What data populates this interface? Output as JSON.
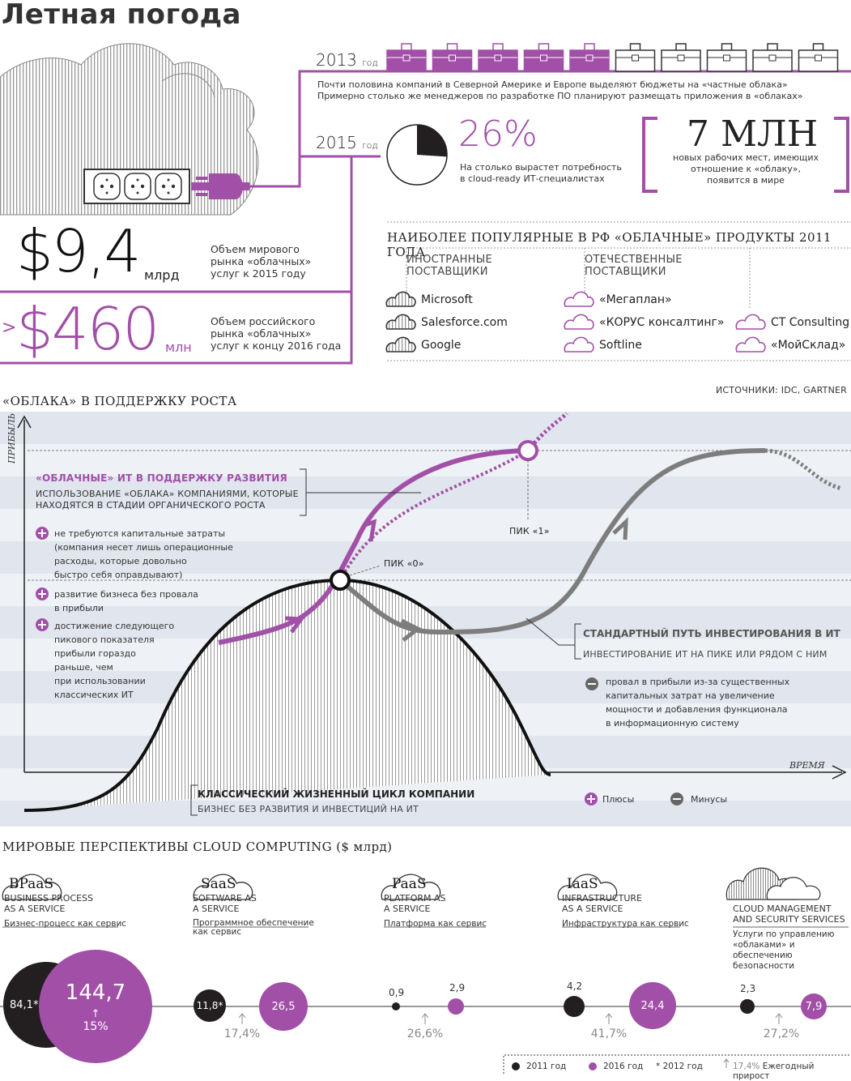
{
  "title": "Летная погода",
  "top": {
    "y2013": "2013",
    "y2015": "2015",
    "year_word": "год",
    "note_2013": [
      "Почти половина компаний в Северной Америке и Европе выделяют бюджеты на «частные облака»",
      "Примерно столько же менеджеров по разработке ПО планируют размещать приложения в «облаках»"
    ],
    "pie_percent": 26,
    "pct_label": "26%",
    "pct_desc": [
      "На столько вырастет потребность",
      "в cloud-ready ИТ-специалистах"
    ],
    "mln_big": "7 МЛН",
    "mln_desc": [
      "новых рабочих мест, имеющих",
      "отношение к «облаку»,",
      "появится в мире"
    ],
    "val1": "$9,4",
    "val1_unit": "млрд",
    "val1_desc": [
      "Объем мирового",
      "рынка «облачных»",
      "услуг к 2015 году"
    ],
    "val2_prefix": ">",
    "val2": "$460",
    "val2_unit": "млн",
    "val2_desc": [
      "Объем российского",
      "рынка «облачных»",
      "услуг к концу 2016 года"
    ],
    "briefcases_filled": 5,
    "briefcases_total": 10
  },
  "popular": {
    "title": "НАИБОЛЕЕ ПОПУЛЯРНЫЕ В РФ «ОБЛАЧНЫЕ» ПРОДУКТЫ 2011 ГОДА",
    "foreign_hdr": [
      "ИНОСТРАННЫЕ",
      "ПОСТАВЩИКИ"
    ],
    "domestic_hdr": [
      "ОТЕЧЕСТВЕННЫЕ",
      "ПОСТАВЩИКИ"
    ],
    "foreign": [
      "Microsoft",
      "Salesforce.com",
      "Google"
    ],
    "domestic_a": [
      "«Мегаплан»",
      "«КОРУС консалтинг»",
      "Softline"
    ],
    "domestic_b": [
      "CT Consulting",
      "«МойСклад»"
    ],
    "sources": "ИСТОЧНИКИ:  IDC, GARTNER"
  },
  "growth_chart": {
    "title": "«ОБЛАКА» В ПОДДЕРЖКУ РОСТА",
    "y_axis": "ПРИБЫЛЬ",
    "x_axis": "ВРЕМЯ",
    "cloud_title": "«ОБЛАЧНЫЕ» ИТ В ПОДДЕРЖКУ РАЗВИТИЯ",
    "cloud_sub": [
      "ИСПОЛЬЗОВАНИЕ «ОБЛАКА» КОМПАНИЯМИ, КОТОРЫЕ",
      "НАХОДЯТСЯ В СТАДИИ ОРГАНИЧЕСКОГО РОСТА"
    ],
    "plus1": [
      "не требуются капитальные затраты",
      "(компания несет лишь операционные",
      "расходы, которые довольно",
      "быстро себя оправдывают)"
    ],
    "plus2": [
      "развитие бизнеса без провала",
      "в прибыли"
    ],
    "plus3": [
      "достижение следующего",
      "пикового показателя",
      "прибыли гораздо",
      "раньше, чем",
      "при использовании",
      "классических ИТ"
    ],
    "peak1": "ПИК «1»",
    "peak0": "ПИК «0»",
    "std_title": "СТАНДАРТНЫЙ ПУТЬ ИНВЕСТИРОВАНИЯ В ИТ",
    "std_sub": "ИНВЕСТИРОВАНИЕ ИТ НА ПИКЕ ИЛИ РЯДОМ С НИМ",
    "minus1": [
      "провал в прибыли из-за существенных",
      "капитальных затрат на увеличение",
      "мощности и добавления функционала",
      "в информационную систему"
    ],
    "classic_title": "КЛАССИЧЕСКИЙ  ЖИЗНЕННЫЙ ЦИКЛ КОМПАНИИ",
    "classic_sub": "БИЗНЕС БЕЗ РАЗВИТИЯ И ИНВЕСТИЦИЙ НА ИТ",
    "legend_plus": "Плюсы",
    "legend_minus": "Минусы"
  },
  "perspectives": {
    "title": "МИРОВЫЕ ПЕРСПЕКТИВЫ CLOUD COMPUTING ($ млрд)",
    "categories": [
      {
        "abbr": "BPaaS",
        "en": [
          "BUSINESS PROCESS",
          "AS A SERVICE"
        ],
        "ru": [
          "Бизнес-процесс как сервис"
        ],
        "v2011": "84,1*",
        "v2016": "144,7",
        "growth": "15%"
      },
      {
        "abbr": "SaaS",
        "en": [
          "SOFTWARE AS",
          "A SERVICE"
        ],
        "ru": [
          "Программное обеспечение",
          "как сервис"
        ],
        "v2011": "11,8*",
        "v2016": "26,5",
        "growth": "17,4%"
      },
      {
        "abbr": "PaaS",
        "en": [
          "PLATFORM AS",
          "A SERVICE"
        ],
        "ru": [
          "Платформа как сервис"
        ],
        "v2011": "0,9",
        "v2016": "2,9",
        "growth": "26,6%"
      },
      {
        "abbr": "IaaS",
        "en": [
          "INFRASTRUCTURE",
          "AS A SERVICE"
        ],
        "ru": [
          "Инфраструктура как сервис"
        ],
        "v2011": "4,2",
        "v2016": "24,4",
        "growth": "41,7%"
      },
      {
        "abbr": "",
        "en": [
          "CLOUD MANAGEMENT",
          "AND SECURITY SERVICES"
        ],
        "ru": [
          "Услуги по управлению",
          "«облаками» и обеспечению",
          "безопасности"
        ],
        "v2011": "2,3",
        "v2016": "7,9",
        "growth": "27,2%"
      }
    ],
    "legend": [
      "2011 год",
      "2016 год",
      "2012 год",
      "17,4%",
      "Ежегодный прирост"
    ]
  },
  "colors": {
    "accent": "#a24fa8",
    "dark": "#231f20",
    "grey": "#8a8a8a",
    "band": "#e3e8ef"
  }
}
